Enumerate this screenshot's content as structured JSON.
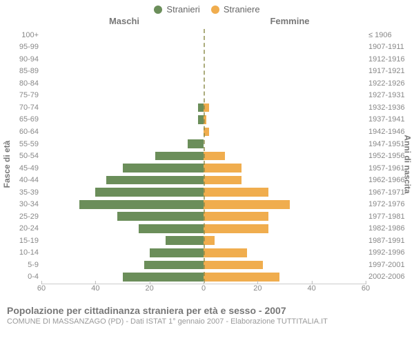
{
  "legend": {
    "male_label": "Stranieri",
    "female_label": "Straniere"
  },
  "headers": {
    "male": "Maschi",
    "female": "Femmine"
  },
  "axis_labels": {
    "left": "Fasce di età",
    "right": "Anni di nascita"
  },
  "chart": {
    "type": "population-pyramid",
    "background_color": "#ffffff",
    "text_color": "#888888",
    "centerline_color": "#888844",
    "xaxis_max": 60,
    "xticks": [
      60,
      40,
      20,
      0,
      20,
      40,
      60
    ],
    "male_color": "#6b8e5a",
    "female_color": "#f0ad4e",
    "title_fontsize": 14,
    "label_fontsize": 11,
    "rows": [
      {
        "age": "100+",
        "birth": "≤ 1906",
        "m": 0,
        "f": 0
      },
      {
        "age": "95-99",
        "birth": "1907-1911",
        "m": 0,
        "f": 0
      },
      {
        "age": "90-94",
        "birth": "1912-1916",
        "m": 0,
        "f": 0
      },
      {
        "age": "85-89",
        "birth": "1917-1921",
        "m": 0,
        "f": 0
      },
      {
        "age": "80-84",
        "birth": "1922-1926",
        "m": 0,
        "f": 0
      },
      {
        "age": "75-79",
        "birth": "1927-1931",
        "m": 0,
        "f": 0
      },
      {
        "age": "70-74",
        "birth": "1932-1936",
        "m": 2,
        "f": 2
      },
      {
        "age": "65-69",
        "birth": "1937-1941",
        "m": 2,
        "f": 1
      },
      {
        "age": "60-64",
        "birth": "1942-1946",
        "m": 0,
        "f": 2
      },
      {
        "age": "55-59",
        "birth": "1947-1951",
        "m": 6,
        "f": 0
      },
      {
        "age": "50-54",
        "birth": "1952-1956",
        "m": 18,
        "f": 8
      },
      {
        "age": "45-49",
        "birth": "1957-1961",
        "m": 30,
        "f": 14
      },
      {
        "age": "40-44",
        "birth": "1962-1966",
        "m": 36,
        "f": 14
      },
      {
        "age": "35-39",
        "birth": "1967-1971",
        "m": 40,
        "f": 24
      },
      {
        "age": "30-34",
        "birth": "1972-1976",
        "m": 46,
        "f": 32
      },
      {
        "age": "25-29",
        "birth": "1977-1981",
        "m": 32,
        "f": 24
      },
      {
        "age": "20-24",
        "birth": "1982-1986",
        "m": 24,
        "f": 24
      },
      {
        "age": "15-19",
        "birth": "1987-1991",
        "m": 14,
        "f": 4
      },
      {
        "age": "10-14",
        "birth": "1992-1996",
        "m": 20,
        "f": 16
      },
      {
        "age": "5-9",
        "birth": "1997-2001",
        "m": 22,
        "f": 22
      },
      {
        "age": "0-4",
        "birth": "2002-2006",
        "m": 30,
        "f": 28
      }
    ]
  },
  "footer": {
    "title": "Popolazione per cittadinanza straniera per età e sesso - 2007",
    "subtitle": "COMUNE DI MASSANZAGO (PD) - Dati ISTAT 1° gennaio 2007 - Elaborazione TUTTITALIA.IT"
  }
}
